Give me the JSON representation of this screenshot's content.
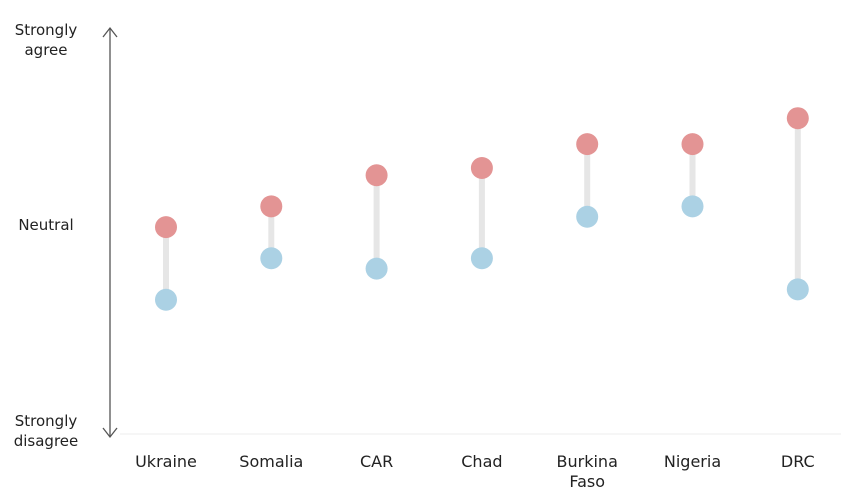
{
  "chart_data": {
    "type": "dumbbell",
    "title": "",
    "xlabel": "",
    "ylabel": "",
    "y_axis_labels": {
      "top": [
        "Strongly",
        "agree"
      ],
      "middle": [
        "Neutral"
      ],
      "bottom": [
        "Strongly",
        "disagree"
      ]
    },
    "ylim": [
      -2,
      2
    ],
    "categories": [
      [
        "Ukraine"
      ],
      [
        "Somalia"
      ],
      [
        "CAR"
      ],
      [
        "Chad"
      ],
      [
        "Burkina",
        "Faso"
      ],
      [
        "Nigeria"
      ],
      [
        "DRC"
      ]
    ],
    "series": [
      {
        "color": "#e39494",
        "values": [
          0.1,
          0.3,
          0.6,
          0.67,
          0.9,
          0.9,
          1.15
        ]
      },
      {
        "color": "#abd1e4",
        "values": [
          -0.6,
          -0.2,
          -0.3,
          -0.2,
          0.2,
          0.3,
          -0.5
        ]
      }
    ],
    "connector_color": "#e6e6e6",
    "axis_color": "#555555",
    "grid": false
  }
}
